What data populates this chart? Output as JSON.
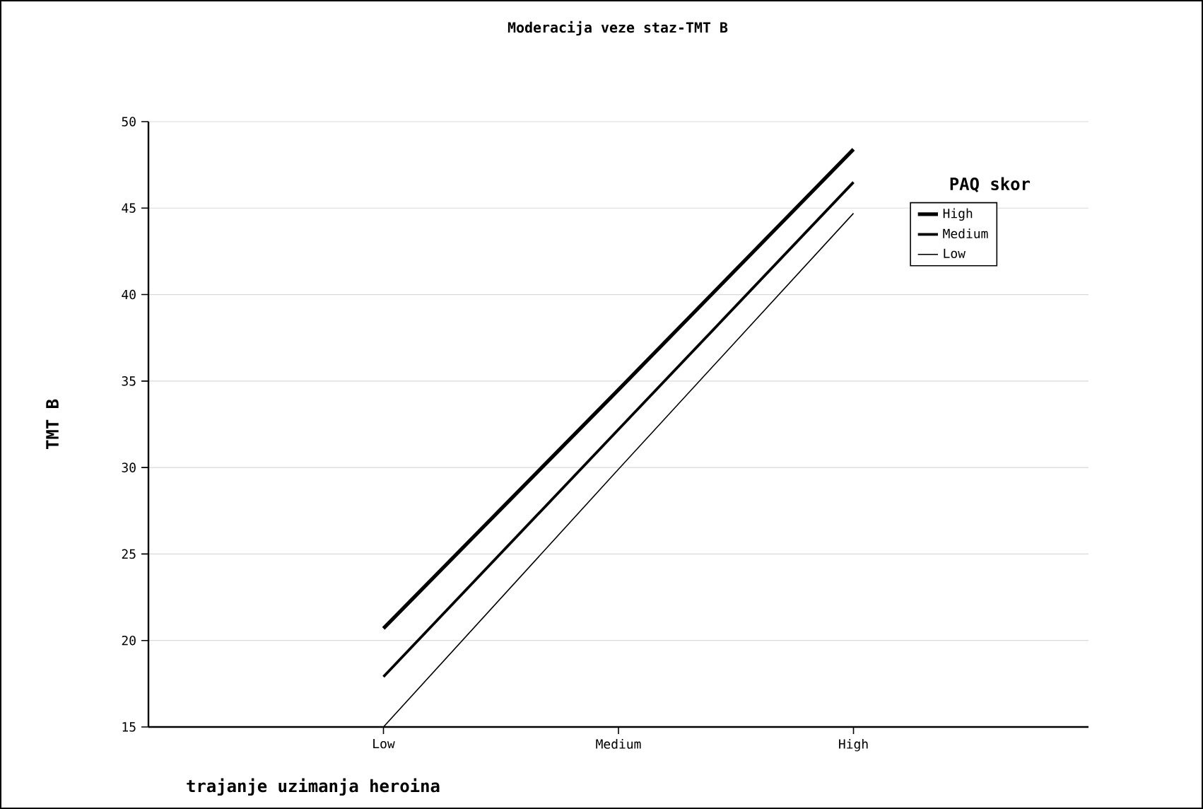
{
  "chart_data": {
    "type": "line",
    "title": "Moderacija veze staz-TMT B",
    "xlabel": "trajanje uzimanja heroina",
    "ylabel": "TMT B",
    "legend_title": "PAQ skor",
    "categories": [
      "Low",
      "Medium",
      "High"
    ],
    "series": [
      {
        "name": "High",
        "color": "#000000",
        "values": [
          20.7,
          34.5,
          48.4
        ]
      },
      {
        "name": "Medium",
        "color": "#000000",
        "values": [
          17.9,
          32.2,
          46.5
        ]
      },
      {
        "name": "Low",
        "color": "#000000",
        "values": [
          15.0,
          29.9,
          44.7
        ]
      }
    ],
    "ylim": [
      15,
      50
    ],
    "yticks": [
      15,
      20,
      25,
      30,
      35,
      40,
      45,
      50
    ],
    "grid": "y",
    "legend": "top right",
    "marker": "none",
    "line_style": "solid"
  }
}
